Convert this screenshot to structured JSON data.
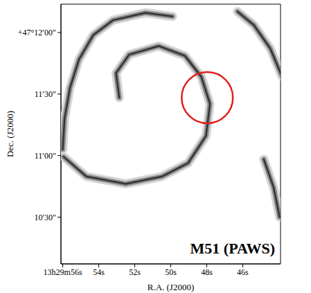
{
  "chart_data": {
    "type": "contour",
    "color": "#333333",
    "xlabel": "R.A. (J2000)",
    "ylabel": "Dec. (J2000)",
    "annotation": "M51 (PAWS)",
    "xlim": [
      56.1,
      43.9
    ],
    "ylim": [
      10.12,
      12.23
    ],
    "xticks": [
      {
        "value": 56,
        "label": "13h29m56s"
      },
      {
        "value": 54,
        "label": "54s"
      },
      {
        "value": 52,
        "label": "52s"
      },
      {
        "value": 50,
        "label": "50s"
      },
      {
        "value": 48,
        "label": "48s"
      },
      {
        "value": 46,
        "label": "46s"
      }
    ],
    "yticks": [
      {
        "value": 12,
        "label": "+47°12′00″"
      },
      {
        "value": 11.5,
        "label": "11′30″"
      },
      {
        "value": 11,
        "label": "11′00″"
      },
      {
        "value": 10.5,
        "label": "10′30″"
      }
    ],
    "series": [
      {
        "x": [
          56.0,
          55.9,
          55.6,
          55.1,
          54.3,
          53.2,
          51.4,
          49.9
        ],
        "y": [
          11.05,
          11.3,
          11.55,
          11.78,
          11.98,
          12.1,
          12.16,
          12.13
        ]
      },
      {
        "x": [
          52.86,
          53.04,
          52.31,
          50.67,
          49.21,
          48.3,
          47.82,
          48.04,
          49.03,
          50.49,
          52.5,
          54.69,
          55.95
        ],
        "y": [
          11.47,
          11.67,
          11.82,
          11.89,
          11.81,
          11.64,
          11.42,
          11.16,
          10.94,
          10.83,
          10.77,
          10.83,
          10.99
        ]
      },
      {
        "x": [
          46.29,
          45.38,
          44.47,
          43.81
        ],
        "y": [
          12.17,
          12.06,
          11.87,
          11.64
        ]
      },
      {
        "x": [
          44.83,
          44.28,
          43.95
        ],
        "y": [
          10.97,
          10.74,
          10.5
        ]
      }
    ],
    "highlight": {
      "x": 47.97,
      "y": 11.47,
      "color": "#e02020"
    }
  }
}
